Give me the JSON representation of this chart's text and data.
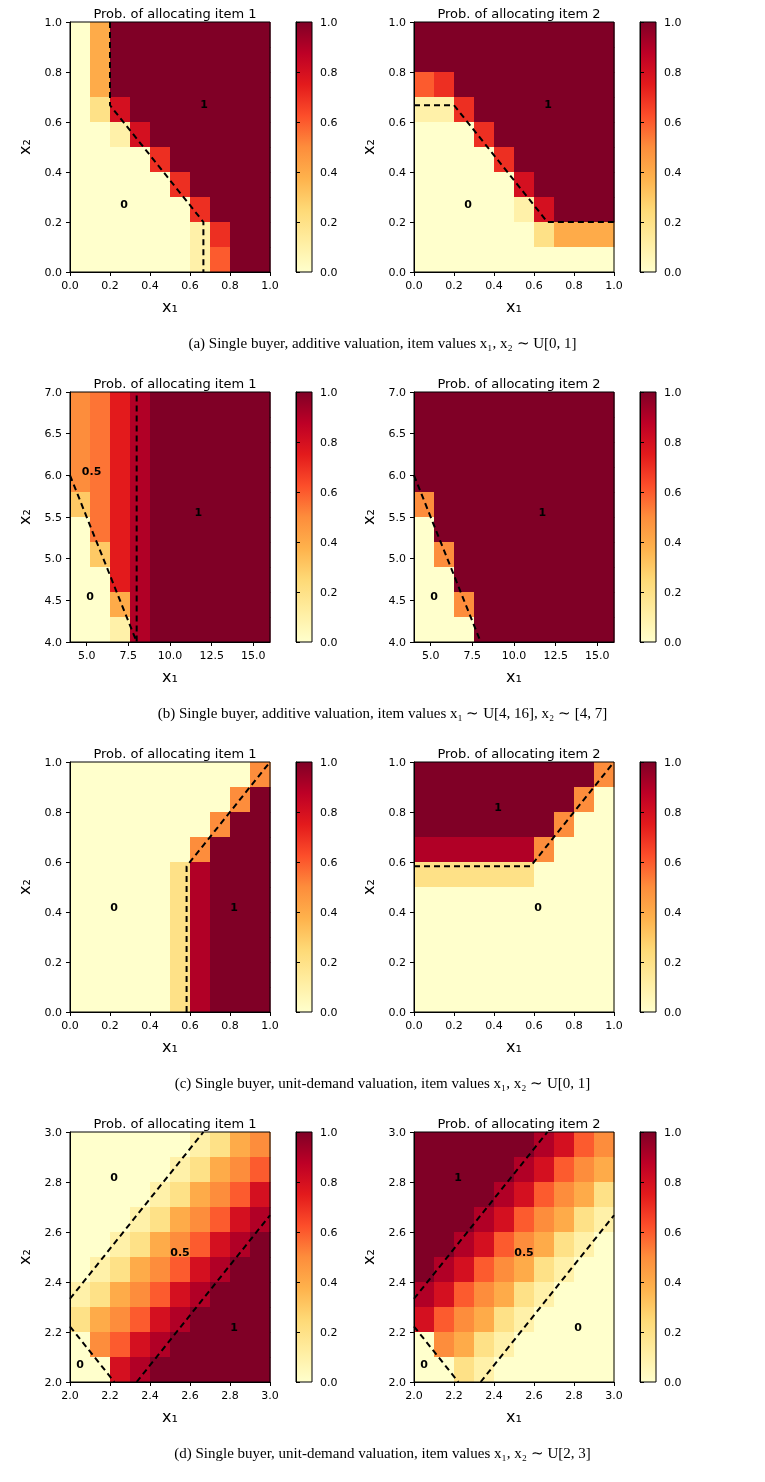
{
  "chart_data": [
    {
      "type": "heatmap",
      "title": "Prob. of allocating item 1",
      "xlabel": "x₁",
      "ylabel": "x₂",
      "xlim": [
        0,
        1
      ],
      "ylim": [
        0,
        1
      ],
      "xticks": [
        {
          "value": 0,
          "label": "0.0"
        },
        {
          "value": 0.2,
          "label": "0.2"
        },
        {
          "value": 0.4,
          "label": "0.4"
        },
        {
          "value": 0.6,
          "label": "0.6"
        },
        {
          "value": 0.8,
          "label": "0.8"
        },
        {
          "value": 1,
          "label": "1.0"
        }
      ],
      "yticks": [
        {
          "value": 0,
          "label": "0.0"
        },
        {
          "value": 0.2,
          "label": "0.2"
        },
        {
          "value": 0.4,
          "label": "0.4"
        },
        {
          "value": 0.6,
          "label": "0.6"
        },
        {
          "value": 0.8,
          "label": "0.8"
        },
        {
          "value": 1,
          "label": "1.0"
        }
      ],
      "clim": [
        0,
        1
      ],
      "cticks": [
        {
          "value": 0,
          "label": "0.0"
        },
        {
          "value": 0.2,
          "label": "0.2"
        },
        {
          "value": 0.4,
          "label": "0.4"
        },
        {
          "value": 0.6,
          "label": "0.6"
        },
        {
          "value": 0.8,
          "label": "0.8"
        },
        {
          "value": 1,
          "label": "1.0"
        }
      ],
      "cells": [
        [
          0,
          0.4,
          1,
          1,
          1,
          1,
          1,
          1,
          1,
          1
        ],
        [
          0,
          0.4,
          1,
          1,
          1,
          1,
          1,
          1,
          1,
          1
        ],
        [
          0,
          0.4,
          1,
          1,
          1,
          1,
          1,
          1,
          1,
          1
        ],
        [
          0,
          0.2,
          0.8,
          1,
          1,
          1,
          1,
          1,
          1,
          1
        ],
        [
          0,
          0,
          0.1,
          0.8,
          1,
          1,
          1,
          1,
          1,
          1
        ],
        [
          0,
          0,
          0,
          0,
          0.7,
          1,
          1,
          1,
          1,
          1
        ],
        [
          0,
          0,
          0,
          0,
          0,
          0.7,
          1,
          1,
          1,
          1
        ],
        [
          0,
          0,
          0,
          0,
          0,
          0,
          0.7,
          1,
          1,
          1
        ],
        [
          0,
          0,
          0,
          0,
          0,
          0,
          0.1,
          0.7,
          1,
          1
        ],
        [
          0,
          0,
          0,
          0,
          0,
          0,
          0.1,
          0.6,
          1,
          1
        ]
      ],
      "series": [
        {
          "type": "line",
          "color": "#000000",
          "x": [
            0.2,
            0.2,
            0.667,
            0.667
          ],
          "values": [
            1,
            0.667,
            0.2,
            0
          ]
        }
      ],
      "line_style": "dashed",
      "marker": "none",
      "annotations": [
        "1",
        "0",
        "(a) Single buyer, additive valuation, item values x₁, x₂ ∼ U[0, 1]"
      ]
    },
    {
      "type": "heatmap",
      "title": "Prob. of allocating item 2",
      "xlabel": "x₁",
      "ylabel": "x₂",
      "xlim": [
        0,
        1
      ],
      "ylim": [
        0,
        1
      ],
      "xticks": [
        {
          "value": 0,
          "label": "0.0"
        },
        {
          "value": 0.2,
          "label": "0.2"
        },
        {
          "value": 0.4,
          "label": "0.4"
        },
        {
          "value": 0.6,
          "label": "0.6"
        },
        {
          "value": 0.8,
          "label": "0.8"
        },
        {
          "value": 1,
          "label": "1.0"
        }
      ],
      "yticks": [
        {
          "value": 0,
          "label": "0.0"
        },
        {
          "value": 0.2,
          "label": "0.2"
        },
        {
          "value": 0.4,
          "label": "0.4"
        },
        {
          "value": 0.6,
          "label": "0.6"
        },
        {
          "value": 0.8,
          "label": "0.8"
        },
        {
          "value": 1,
          "label": "1.0"
        }
      ],
      "clim": [
        0,
        1
      ],
      "cticks": [
        {
          "value": 0,
          "label": "0.0"
        },
        {
          "value": 0.2,
          "label": "0.2"
        },
        {
          "value": 0.4,
          "label": "0.4"
        },
        {
          "value": 0.6,
          "label": "0.6"
        },
        {
          "value": 0.8,
          "label": "0.8"
        },
        {
          "value": 1,
          "label": "1.0"
        }
      ],
      "cells": [
        [
          1,
          1,
          1,
          1,
          1,
          1,
          1,
          1,
          1,
          1
        ],
        [
          1,
          1,
          1,
          1,
          1,
          1,
          1,
          1,
          1,
          1
        ],
        [
          0.6,
          0.7,
          1,
          1,
          1,
          1,
          1,
          1,
          1,
          1
        ],
        [
          0.1,
          0.1,
          0.7,
          1,
          1,
          1,
          1,
          1,
          1,
          1
        ],
        [
          0,
          0,
          0,
          0.7,
          1,
          1,
          1,
          1,
          1,
          1
        ],
        [
          0,
          0,
          0,
          0,
          0.7,
          1,
          1,
          1,
          1,
          1
        ],
        [
          0,
          0,
          0,
          0,
          0,
          0.8,
          1,
          1,
          1,
          1
        ],
        [
          0,
          0,
          0,
          0,
          0,
          0.1,
          0.8,
          1,
          1,
          1
        ],
        [
          0,
          0,
          0,
          0,
          0,
          0,
          0.2,
          0.4,
          0.4,
          0.4
        ],
        [
          0,
          0,
          0,
          0,
          0,
          0,
          0,
          0,
          0,
          0
        ]
      ],
      "series": [
        {
          "type": "line",
          "color": "#000000",
          "x": [
            0,
            0.2,
            0.667,
            1
          ],
          "values": [
            0.667,
            0.667,
            0.2,
            0.2
          ]
        }
      ],
      "line_style": "dashed",
      "marker": "none",
      "annotations": [
        "1",
        "0"
      ]
    },
    {
      "type": "heatmap",
      "title": "Prob. of allocating item 1",
      "xlabel": "x₁",
      "ylabel": "x₂",
      "xlim": [
        4,
        16
      ],
      "ylim": [
        4,
        7
      ],
      "xticks": [
        {
          "value": 5,
          "label": "5.0"
        },
        {
          "value": 7.5,
          "label": "7.5"
        },
        {
          "value": 10,
          "label": "10.0"
        },
        {
          "value": 12.5,
          "label": "12.5"
        },
        {
          "value": 15,
          "label": "15.0"
        }
      ],
      "yticks": [
        {
          "value": 4,
          "label": "4.0"
        },
        {
          "value": 4.5,
          "label": "4.5"
        },
        {
          "value": 5,
          "label": "5.0"
        },
        {
          "value": 5.5,
          "label": "5.5"
        },
        {
          "value": 6,
          "label": "6.0"
        },
        {
          "value": 6.5,
          "label": "6.5"
        },
        {
          "value": 7,
          "label": "7.0"
        }
      ],
      "clim": [
        0,
        1
      ],
      "cticks": [
        {
          "value": 0,
          "label": "0.0"
        },
        {
          "value": 0.2,
          "label": "0.2"
        },
        {
          "value": 0.4,
          "label": "0.4"
        },
        {
          "value": 0.6,
          "label": "0.6"
        },
        {
          "value": 0.8,
          "label": "0.8"
        },
        {
          "value": 1,
          "label": "1.0"
        }
      ],
      "cells": [
        [
          0.5,
          0.55,
          0.75,
          0.9,
          1,
          1,
          1,
          1,
          1,
          1
        ],
        [
          0.5,
          0.55,
          0.75,
          0.9,
          1,
          1,
          1,
          1,
          1,
          1
        ],
        [
          0.5,
          0.55,
          0.75,
          0.9,
          1,
          1,
          1,
          1,
          1,
          1
        ],
        [
          0.5,
          0.55,
          0.75,
          0.9,
          1,
          1,
          1,
          1,
          1,
          1
        ],
        [
          0.3,
          0.55,
          0.75,
          0.9,
          1,
          1,
          1,
          1,
          1,
          1
        ],
        [
          0,
          0.55,
          0.75,
          0.9,
          1,
          1,
          1,
          1,
          1,
          1
        ],
        [
          0,
          0.3,
          0.75,
          0.9,
          1,
          1,
          1,
          1,
          1,
          1
        ],
        [
          0,
          0,
          0.75,
          0.9,
          1,
          1,
          1,
          1,
          1,
          1
        ],
        [
          0,
          0,
          0.4,
          0.9,
          1,
          1,
          1,
          1,
          1,
          1
        ],
        [
          0,
          0,
          0.1,
          0.9,
          1,
          1,
          1,
          1,
          1,
          1
        ]
      ],
      "series": [
        {
          "type": "line",
          "color": "#000000",
          "x": [
            4,
            8,
            8
          ],
          "values": [
            6,
            4,
            7
          ]
        }
      ],
      "line_style": "dashed",
      "marker": "none",
      "annotations": [
        "0.5",
        "1",
        "0",
        "(b) Single buyer, additive valuation, item values x₁ ∼ U[4, 16], x₂ ∼ [4, 7]"
      ]
    },
    {
      "type": "heatmap",
      "title": "Prob. of allocating item 2",
      "xlabel": "x₁",
      "ylabel": "x₂",
      "xlim": [
        4,
        16
      ],
      "ylim": [
        4,
        7
      ],
      "xticks": [
        {
          "value": 5,
          "label": "5.0"
        },
        {
          "value": 7.5,
          "label": "7.5"
        },
        {
          "value": 10,
          "label": "10.0"
        },
        {
          "value": 12.5,
          "label": "12.5"
        },
        {
          "value": 15,
          "label": "15.0"
        }
      ],
      "yticks": [
        {
          "value": 4,
          "label": "4.0"
        },
        {
          "value": 4.5,
          "label": "4.5"
        },
        {
          "value": 5,
          "label": "5.0"
        },
        {
          "value": 5.5,
          "label": "5.5"
        },
        {
          "value": 6,
          "label": "6.0"
        },
        {
          "value": 6.5,
          "label": "6.5"
        },
        {
          "value": 7,
          "label": "7.0"
        }
      ],
      "clim": [
        0,
        1
      ],
      "cticks": [
        {
          "value": 0,
          "label": "0.0"
        },
        {
          "value": 0.2,
          "label": "0.2"
        },
        {
          "value": 0.4,
          "label": "0.4"
        },
        {
          "value": 0.6,
          "label": "0.6"
        },
        {
          "value": 0.8,
          "label": "0.8"
        },
        {
          "value": 1,
          "label": "1.0"
        }
      ],
      "cells": [
        [
          1,
          1,
          1,
          1,
          1,
          1,
          1,
          1,
          1,
          1
        ],
        [
          1,
          1,
          1,
          1,
          1,
          1,
          1,
          1,
          1,
          1
        ],
        [
          1,
          1,
          1,
          1,
          1,
          1,
          1,
          1,
          1,
          1
        ],
        [
          1,
          1,
          1,
          1,
          1,
          1,
          1,
          1,
          1,
          1
        ],
        [
          0.5,
          1,
          1,
          1,
          1,
          1,
          1,
          1,
          1,
          1
        ],
        [
          0,
          1,
          1,
          1,
          1,
          1,
          1,
          1,
          1,
          1
        ],
        [
          0,
          0.5,
          1,
          1,
          1,
          1,
          1,
          1,
          1,
          1
        ],
        [
          0,
          0,
          1,
          1,
          1,
          1,
          1,
          1,
          1,
          1
        ],
        [
          0,
          0,
          0.5,
          1,
          1,
          1,
          1,
          1,
          1,
          1
        ],
        [
          0,
          0,
          0,
          1,
          1,
          1,
          1,
          1,
          1,
          1
        ]
      ],
      "series": [
        {
          "type": "line",
          "color": "#000000",
          "x": [
            4,
            8
          ],
          "values": [
            6,
            4
          ]
        }
      ],
      "line_style": "dashed",
      "marker": "none",
      "annotations": [
        "1",
        "0"
      ]
    },
    {
      "type": "heatmap",
      "title": "Prob. of allocating item 1",
      "xlabel": "x₁",
      "ylabel": "x₂",
      "xlim": [
        0,
        1
      ],
      "ylim": [
        0,
        1
      ],
      "xticks": [
        {
          "value": 0,
          "label": "0.0"
        },
        {
          "value": 0.2,
          "label": "0.2"
        },
        {
          "value": 0.4,
          "label": "0.4"
        },
        {
          "value": 0.6,
          "label": "0.6"
        },
        {
          "value": 0.8,
          "label": "0.8"
        },
        {
          "value": 1,
          "label": "1.0"
        }
      ],
      "yticks": [
        {
          "value": 0,
          "label": "0.0"
        },
        {
          "value": 0.2,
          "label": "0.2"
        },
        {
          "value": 0.4,
          "label": "0.4"
        },
        {
          "value": 0.6,
          "label": "0.6"
        },
        {
          "value": 0.8,
          "label": "0.8"
        },
        {
          "value": 1,
          "label": "1.0"
        }
      ],
      "clim": [
        0,
        1
      ],
      "cticks": [
        {
          "value": 0,
          "label": "0.0"
        },
        {
          "value": 0.2,
          "label": "0.2"
        },
        {
          "value": 0.4,
          "label": "0.4"
        },
        {
          "value": 0.6,
          "label": "0.6"
        },
        {
          "value": 0.8,
          "label": "0.8"
        },
        {
          "value": 1,
          "label": "1.0"
        }
      ],
      "cells": [
        [
          0,
          0,
          0,
          0,
          0,
          0,
          0,
          0,
          0,
          0.5
        ],
        [
          0,
          0,
          0,
          0,
          0,
          0,
          0,
          0,
          0.5,
          1
        ],
        [
          0,
          0,
          0,
          0,
          0,
          0,
          0,
          0.5,
          1,
          1
        ],
        [
          0,
          0,
          0,
          0,
          0,
          0,
          0.5,
          1,
          1,
          1
        ],
        [
          0,
          0,
          0,
          0,
          0,
          0.2,
          0.9,
          1,
          1,
          1
        ],
        [
          0,
          0,
          0,
          0,
          0,
          0.2,
          0.9,
          1,
          1,
          1
        ],
        [
          0,
          0,
          0,
          0,
          0,
          0.2,
          0.9,
          1,
          1,
          1
        ],
        [
          0,
          0,
          0,
          0,
          0,
          0.2,
          0.9,
          1,
          1,
          1
        ],
        [
          0,
          0,
          0,
          0,
          0,
          0.2,
          0.9,
          1,
          1,
          1
        ],
        [
          0,
          0,
          0,
          0,
          0,
          0.2,
          0.9,
          1,
          1,
          1
        ]
      ],
      "series": [
        {
          "type": "line",
          "color": "#000000",
          "x": [
            0.583,
            0.583,
            1
          ],
          "values": [
            0,
            0.583,
            1
          ]
        }
      ],
      "line_style": "dashed",
      "marker": "none",
      "annotations": [
        "0",
        "1",
        "(c) Single buyer, unit-demand valuation, item values x₁, x₂ ∼ U[0, 1]"
      ]
    },
    {
      "type": "heatmap",
      "title": "Prob. of allocating item 2",
      "xlabel": "x₁",
      "ylabel": "x₂",
      "xlim": [
        0,
        1
      ],
      "ylim": [
        0,
        1
      ],
      "xticks": [
        {
          "value": 0,
          "label": "0.0"
        },
        {
          "value": 0.2,
          "label": "0.2"
        },
        {
          "value": 0.4,
          "label": "0.4"
        },
        {
          "value": 0.6,
          "label": "0.6"
        },
        {
          "value": 0.8,
          "label": "0.8"
        },
        {
          "value": 1,
          "label": "1.0"
        }
      ],
      "yticks": [
        {
          "value": 0,
          "label": "0.0"
        },
        {
          "value": 0.2,
          "label": "0.2"
        },
        {
          "value": 0.4,
          "label": "0.4"
        },
        {
          "value": 0.6,
          "label": "0.6"
        },
        {
          "value": 0.8,
          "label": "0.8"
        },
        {
          "value": 1,
          "label": "1.0"
        }
      ],
      "clim": [
        0,
        1
      ],
      "cticks": [
        {
          "value": 0,
          "label": "0.0"
        },
        {
          "value": 0.2,
          "label": "0.2"
        },
        {
          "value": 0.4,
          "label": "0.4"
        },
        {
          "value": 0.6,
          "label": "0.6"
        },
        {
          "value": 0.8,
          "label": "0.8"
        },
        {
          "value": 1,
          "label": "1.0"
        }
      ],
      "cells": [
        [
          1,
          1,
          1,
          1,
          1,
          1,
          1,
          1,
          1,
          0.5
        ],
        [
          1,
          1,
          1,
          1,
          1,
          1,
          1,
          1,
          0.5,
          0
        ],
        [
          1,
          1,
          1,
          1,
          1,
          1,
          1,
          0.5,
          0,
          0
        ],
        [
          0.9,
          0.9,
          0.9,
          0.9,
          0.9,
          0.9,
          0.5,
          0,
          0,
          0
        ],
        [
          0.2,
          0.2,
          0.2,
          0.2,
          0.2,
          0.2,
          0,
          0,
          0,
          0
        ],
        [
          0,
          0,
          0,
          0,
          0,
          0,
          0,
          0,
          0,
          0
        ],
        [
          0,
          0,
          0,
          0,
          0,
          0,
          0,
          0,
          0,
          0
        ],
        [
          0,
          0,
          0,
          0,
          0,
          0,
          0,
          0,
          0,
          0
        ],
        [
          0,
          0,
          0,
          0,
          0,
          0,
          0,
          0,
          0,
          0
        ],
        [
          0,
          0,
          0,
          0,
          0,
          0,
          0,
          0,
          0,
          0
        ]
      ],
      "series": [
        {
          "type": "line",
          "color": "#000000",
          "x": [
            0,
            0.583,
            1
          ],
          "values": [
            0.583,
            0.583,
            1
          ]
        }
      ],
      "line_style": "dashed",
      "marker": "none",
      "annotations": [
        "1",
        "0"
      ]
    },
    {
      "type": "heatmap",
      "title": "Prob. of allocating item 1",
      "xlabel": "x₁",
      "ylabel": "x₂",
      "xlim": [
        2,
        3
      ],
      "ylim": [
        2,
        3
      ],
      "xticks": [
        {
          "value": 2,
          "label": "2.0"
        },
        {
          "value": 2.2,
          "label": "2.2"
        },
        {
          "value": 2.4,
          "label": "2.4"
        },
        {
          "value": 2.6,
          "label": "2.6"
        },
        {
          "value": 2.8,
          "label": "2.8"
        },
        {
          "value": 3,
          "label": "3.0"
        }
      ],
      "yticks": [
        {
          "value": 2,
          "label": "2.0"
        },
        {
          "value": 2.2,
          "label": "2.2"
        },
        {
          "value": 2.4,
          "label": "2.4"
        },
        {
          "value": 2.6,
          "label": "2.6"
        },
        {
          "value": 2.8,
          "label": "2.8"
        },
        {
          "value": 3,
          "label": "3.0"
        }
      ],
      "clim": [
        0,
        1
      ],
      "cticks": [
        {
          "value": 0,
          "label": "0.0"
        },
        {
          "value": 0.2,
          "label": "0.2"
        },
        {
          "value": 0.4,
          "label": "0.4"
        },
        {
          "value": 0.6,
          "label": "0.6"
        },
        {
          "value": 0.8,
          "label": "0.8"
        },
        {
          "value": 1,
          "label": "1.0"
        }
      ],
      "cells": [
        [
          0,
          0,
          0,
          0,
          0,
          0,
          0.1,
          0.2,
          0.4,
          0.5
        ],
        [
          0,
          0,
          0,
          0,
          0,
          0.1,
          0.2,
          0.4,
          0.5,
          0.6
        ],
        [
          0,
          0,
          0,
          0,
          0.1,
          0.2,
          0.4,
          0.5,
          0.6,
          0.8
        ],
        [
          0,
          0,
          0,
          0.1,
          0.2,
          0.4,
          0.5,
          0.6,
          0.8,
          0.9
        ],
        [
          0,
          0,
          0.1,
          0.2,
          0.4,
          0.5,
          0.6,
          0.8,
          0.9,
          1
        ],
        [
          0,
          0.1,
          0.2,
          0.4,
          0.5,
          0.6,
          0.8,
          0.9,
          1,
          1
        ],
        [
          0.1,
          0.2,
          0.4,
          0.5,
          0.6,
          0.8,
          0.9,
          1,
          1,
          1
        ],
        [
          0.2,
          0.4,
          0.5,
          0.6,
          0.8,
          0.9,
          1,
          1,
          1,
          1
        ],
        [
          0,
          0.5,
          0.6,
          0.8,
          0.9,
          1,
          1,
          1,
          1,
          1
        ],
        [
          0,
          0,
          0.8,
          0.9,
          1,
          1,
          1,
          1,
          1,
          1
        ]
      ],
      "series": [
        {
          "type": "line",
          "color": "#000000",
          "x": [
            2,
            2.667
          ],
          "values": [
            2.333,
            3
          ]
        },
        {
          "type": "line",
          "color": "#000000",
          "x": [
            2.333,
            3
          ],
          "values": [
            2,
            2.667
          ]
        },
        {
          "type": "line",
          "color": "#000000",
          "x": [
            2,
            2.222
          ],
          "values": [
            2.222,
            2
          ]
        }
      ],
      "line_style": "dashed",
      "marker": "none",
      "annotations": [
        "0",
        "0.5",
        "1",
        "0",
        "(d) Single buyer, unit-demand valuation, item values x₁, x₂ ∼ U[2, 3]"
      ]
    },
    {
      "type": "heatmap",
      "title": "Prob. of allocating item 2",
      "xlabel": "x₁",
      "ylabel": "x₂",
      "xlim": [
        2,
        3
      ],
      "ylim": [
        2,
        3
      ],
      "xticks": [
        {
          "value": 2,
          "label": "2.0"
        },
        {
          "value": 2.2,
          "label": "2.2"
        },
        {
          "value": 2.4,
          "label": "2.4"
        },
        {
          "value": 2.6,
          "label": "2.6"
        },
        {
          "value": 2.8,
          "label": "2.8"
        },
        {
          "value": 3,
          "label": "3.0"
        }
      ],
      "yticks": [
        {
          "value": 2,
          "label": "2.0"
        },
        {
          "value": 2.2,
          "label": "2.2"
        },
        {
          "value": 2.4,
          "label": "2.4"
        },
        {
          "value": 2.6,
          "label": "2.6"
        },
        {
          "value": 2.8,
          "label": "2.8"
        },
        {
          "value": 3,
          "label": "3.0"
        }
      ],
      "clim": [
        0,
        1
      ],
      "cticks": [
        {
          "value": 0,
          "label": "0.0"
        },
        {
          "value": 0.2,
          "label": "0.2"
        },
        {
          "value": 0.4,
          "label": "0.4"
        },
        {
          "value": 0.6,
          "label": "0.6"
        },
        {
          "value": 0.8,
          "label": "0.8"
        },
        {
          "value": 1,
          "label": "1.0"
        }
      ],
      "cells": [
        [
          1,
          1,
          1,
          1,
          1,
          1,
          0.9,
          0.8,
          0.6,
          0.5
        ],
        [
          1,
          1,
          1,
          1,
          1,
          0.9,
          0.8,
          0.6,
          0.5,
          0.4
        ],
        [
          1,
          1,
          1,
          1,
          0.9,
          0.8,
          0.6,
          0.5,
          0.4,
          0.2
        ],
        [
          1,
          1,
          1,
          0.9,
          0.8,
          0.6,
          0.5,
          0.4,
          0.2,
          0.1
        ],
        [
          1,
          1,
          0.9,
          0.8,
          0.6,
          0.5,
          0.4,
          0.2,
          0.1,
          0
        ],
        [
          1,
          0.9,
          0.8,
          0.6,
          0.5,
          0.4,
          0.2,
          0.1,
          0,
          0
        ],
        [
          0.9,
          0.8,
          0.6,
          0.5,
          0.4,
          0.2,
          0.1,
          0,
          0,
          0
        ],
        [
          0.8,
          0.6,
          0.5,
          0.4,
          0.2,
          0.1,
          0,
          0,
          0,
          0
        ],
        [
          0,
          0.5,
          0.4,
          0.2,
          0.1,
          0,
          0,
          0,
          0,
          0
        ],
        [
          0,
          0,
          0.2,
          0.1,
          0,
          0,
          0,
          0,
          0,
          0
        ]
      ],
      "series": [
        {
          "type": "line",
          "color": "#000000",
          "x": [
            2,
            2.667
          ],
          "values": [
            2.333,
            3
          ]
        },
        {
          "type": "line",
          "color": "#000000",
          "x": [
            2.333,
            3
          ],
          "values": [
            2,
            2.667
          ]
        },
        {
          "type": "line",
          "color": "#000000",
          "x": [
            2,
            2.222
          ],
          "values": [
            2.222,
            2
          ]
        }
      ],
      "line_style": "dashed",
      "marker": "none",
      "annotations": [
        "1",
        "0.5",
        "0",
        "0"
      ]
    }
  ]
}
